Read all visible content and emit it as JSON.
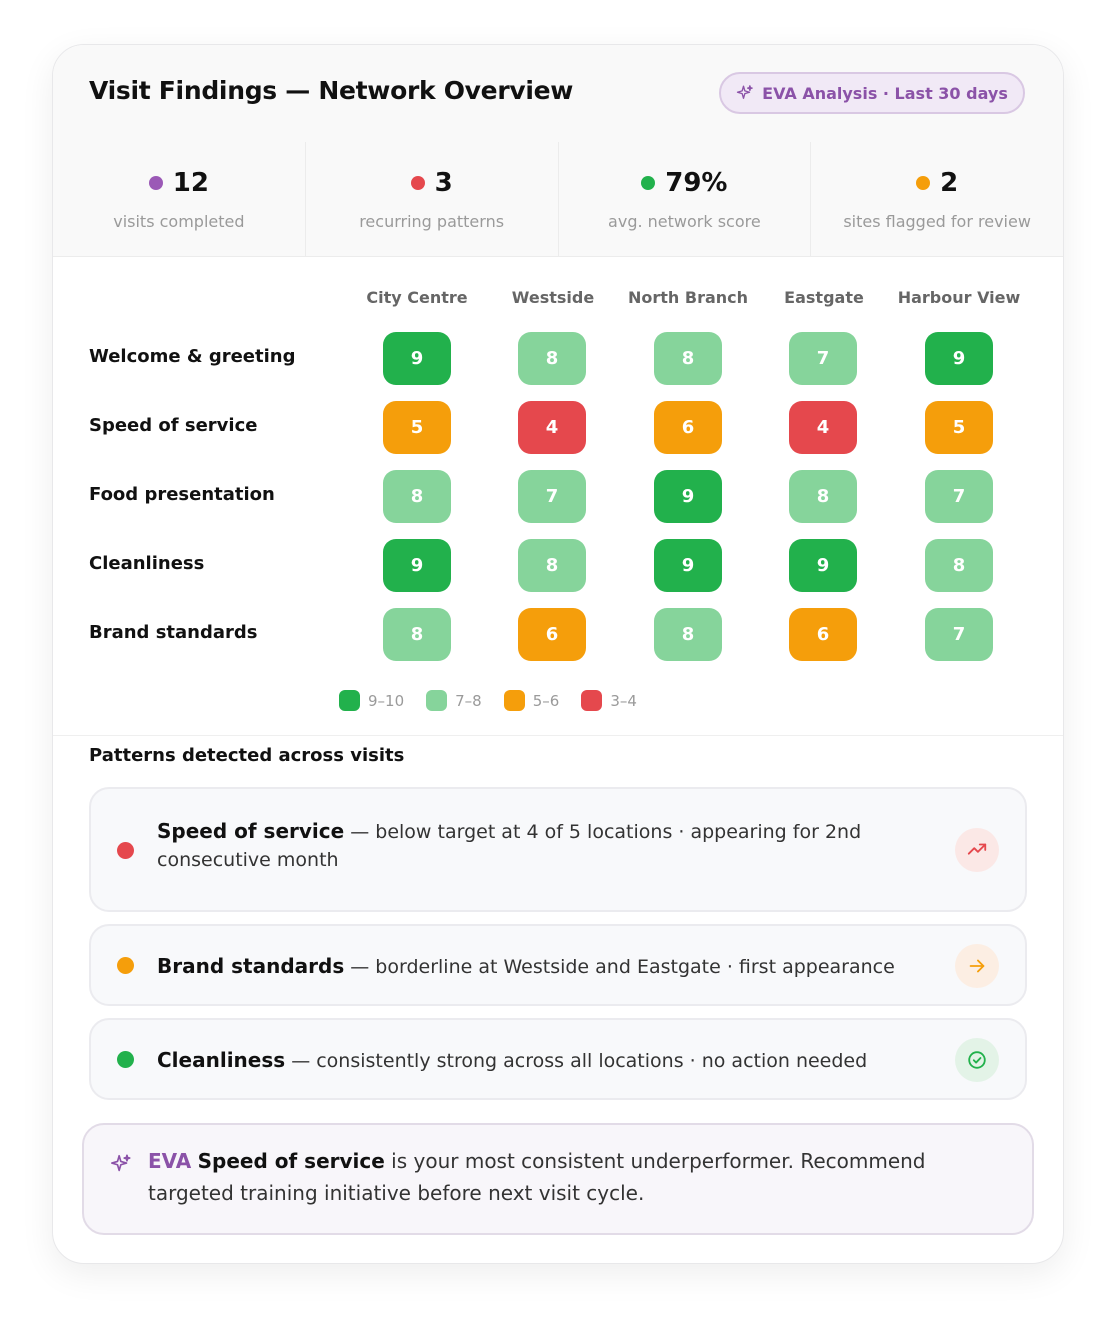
{
  "header": {
    "title": "Visit Findings — Network Overview",
    "badge": "EVA Analysis · Last 30 days"
  },
  "stats": [
    {
      "value": "12",
      "label": "visits completed",
      "color": "#9b59b6"
    },
    {
      "value": "3",
      "label": "recurring patterns",
      "color": "#e5484d"
    },
    {
      "value": "79%",
      "label": "avg. network score",
      "color": "#22b14c"
    },
    {
      "value": "2",
      "label": "sites flagged for review",
      "color": "#f59e0b"
    }
  ],
  "grid": {
    "columns": [
      "City Centre",
      "Westside",
      "North Branch",
      "Eastgate",
      "Harbour View"
    ],
    "rows": [
      {
        "label": "Welcome & greeting",
        "scores": [
          "9",
          "8",
          "8",
          "7",
          "9"
        ]
      },
      {
        "label": "Speed of service",
        "scores": [
          "5",
          "4",
          "6",
          "4",
          "5"
        ]
      },
      {
        "label": "Food presentation",
        "scores": [
          "8",
          "7",
          "9",
          "8",
          "7"
        ]
      },
      {
        "label": "Cleanliness",
        "scores": [
          "9",
          "8",
          "9",
          "9",
          "8"
        ]
      },
      {
        "label": "Brand standards",
        "scores": [
          "8",
          "6",
          "8",
          "6",
          "7"
        ]
      }
    ],
    "legend": [
      {
        "label": "9–10",
        "color": "#22b14c"
      },
      {
        "label": "7–8",
        "color": "#86d49b"
      },
      {
        "label": "5–6",
        "color": "#f59e0b"
      },
      {
        "label": "3–4",
        "color": "#e5484d"
      }
    ]
  },
  "patterns": {
    "title": "Patterns detected across visits",
    "items": [
      {
        "name": "Speed of service",
        "text": " — below target at 4 of 5 locations · appearing for 2nd consecutive month",
        "color": "#e5484d",
        "icon": "trend-up-icon"
      },
      {
        "name": "Brand standards",
        "text": " — borderline at Westside and Eastgate · first appearance",
        "color": "#f59e0b",
        "icon": "arrow-right-icon"
      },
      {
        "name": "Cleanliness",
        "text": " — consistently strong across all locations · no action needed",
        "color": "#22b14c",
        "icon": "check-circle-icon"
      }
    ]
  },
  "eva_note": {
    "label": "EVA",
    "bold": "Speed of service",
    "text": " is your most consistent underperformer. Recommend targeted training initiative before next visit cycle."
  }
}
